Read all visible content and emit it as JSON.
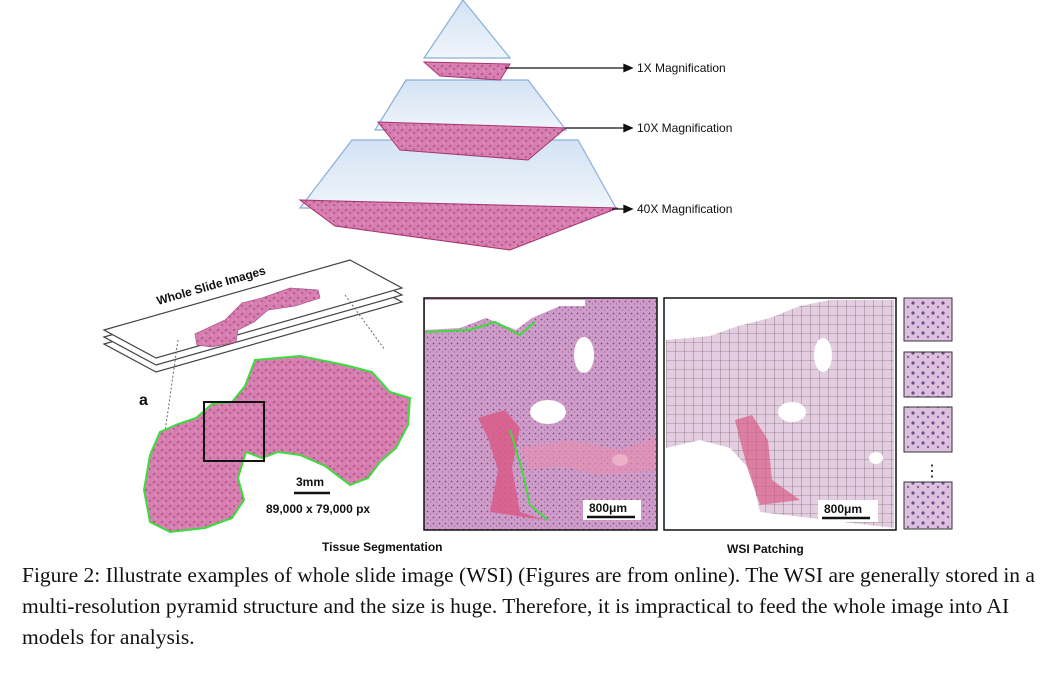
{
  "pyramid": {
    "levels": [
      {
        "label": "1X Magnification"
      },
      {
        "label": "10X Magnification"
      },
      {
        "label": "40X Magnification"
      }
    ]
  },
  "panel": {
    "wsi_stack_title": "Whole Slide Images",
    "panel_letter": "a",
    "scale_bar_label": "3mm",
    "dimensions": "89,000 x 79,000 px",
    "zoom_scale_label": "800μm",
    "patch_scale_label": "800μm",
    "ellipsis": "⋮",
    "segmentation_caption": "Tissue Segmentation",
    "patching_caption": "WSI Patching"
  },
  "caption": {
    "text": "Figure 2: Illustrate examples of whole slide image (WSI) (Figures are from online). The WSI are generally stored in a multi-resolution pyramid structure and the size is huge. Therefore, it is impractical to feed the whole image into AI models for analysis."
  },
  "colors": {
    "tissue": "#d77fb0",
    "tissue_dark": "#b84a85",
    "glass": "#b8d0ea",
    "segmentation_outline": "#3ddc3d"
  }
}
